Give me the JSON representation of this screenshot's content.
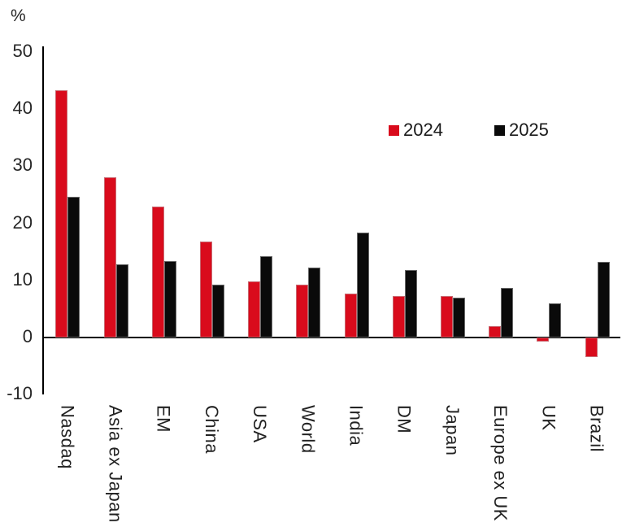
{
  "chart_data": {
    "type": "bar",
    "title": "",
    "ylabel": "%",
    "xlabel": "",
    "ylim": [
      -10,
      50
    ],
    "yticks": [
      50,
      40,
      30,
      20,
      10,
      0,
      -10
    ],
    "grid": false,
    "legend_position": "upper-right-inside",
    "categories": [
      "Nasdaq",
      "Asia ex Japan",
      "EM",
      "China",
      "USA",
      "World",
      "India",
      "DM",
      "Japan",
      "Europe ex UK",
      "UK",
      "Brazil"
    ],
    "series": [
      {
        "name": "2024",
        "color": "#d90b1c",
        "values": [
          43.3,
          28.0,
          22.9,
          16.8,
          9.8,
          9.3,
          7.7,
          7.2,
          7.2,
          2.0,
          -0.7,
          -3.5
        ]
      },
      {
        "name": "2025",
        "color": "#0a0a0a",
        "values": [
          24.7,
          12.8,
          13.4,
          9.2,
          14.2,
          12.2,
          18.4,
          11.8,
          6.9,
          8.6,
          5.9,
          13.3
        ]
      }
    ]
  },
  "colors": {
    "axis": "#000000",
    "text": "#262626",
    "background": "#ffffff"
  }
}
